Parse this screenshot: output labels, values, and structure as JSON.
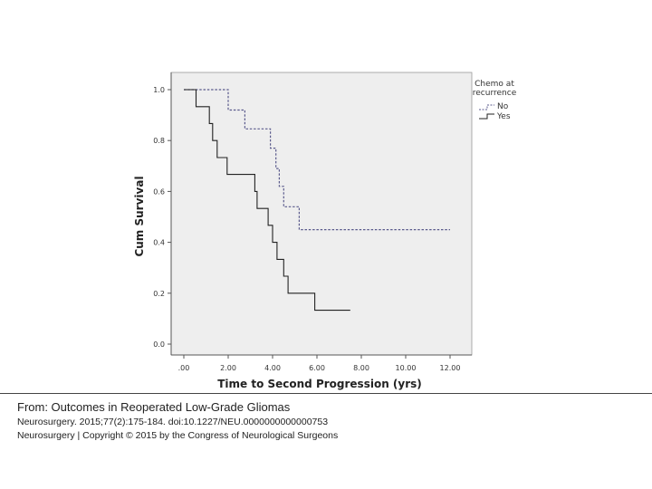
{
  "chart_data": {
    "type": "line",
    "subtype": "kaplan-meier step",
    "title": "",
    "xlabel": "Time to Second Progression (yrs)",
    "ylabel": "Cum Survival",
    "xlim": [
      0,
      12
    ],
    "ylim": [
      0,
      1.0
    ],
    "xticks": [
      ".00",
      "2.00",
      "4.00",
      "6.00",
      "8.00",
      "10.00",
      "12.00"
    ],
    "yticks": [
      "0.0",
      "0.2",
      "0.4",
      "0.6",
      "0.8",
      "1.0"
    ],
    "grid": false,
    "plot_background": "#eeeeee",
    "legend": {
      "title_lines": [
        "Chemo at",
        "recurrence"
      ],
      "placement": "right-top, outside plot"
    },
    "series": [
      {
        "name": "No",
        "style": "dashed",
        "color": "#5a5a8c",
        "x": [
          0,
          2.0,
          2.0,
          2.75,
          2.75,
          3.9,
          3.9,
          4.15,
          4.15,
          4.3,
          4.3,
          4.5,
          4.5,
          5.2,
          5.2,
          12.0
        ],
        "y": [
          1.0,
          1.0,
          0.92,
          0.92,
          0.846,
          0.846,
          0.77,
          0.77,
          0.69,
          0.69,
          0.62,
          0.62,
          0.54,
          0.54,
          0.45,
          0.45
        ]
      },
      {
        "name": "Yes",
        "style": "solid",
        "color": "#222222",
        "x": [
          0,
          0.55,
          0.55,
          1.15,
          1.15,
          1.3,
          1.3,
          1.5,
          1.5,
          1.95,
          1.95,
          3.2,
          3.2,
          3.3,
          3.3,
          3.8,
          3.8,
          4.0,
          4.0,
          4.2,
          4.2,
          4.5,
          4.5,
          4.7,
          4.7,
          5.9,
          5.9,
          7.5
        ],
        "y": [
          1.0,
          1.0,
          0.933,
          0.933,
          0.867,
          0.867,
          0.8,
          0.8,
          0.733,
          0.733,
          0.667,
          0.667,
          0.6,
          0.6,
          0.533,
          0.533,
          0.467,
          0.467,
          0.4,
          0.4,
          0.333,
          0.333,
          0.267,
          0.267,
          0.2,
          0.2,
          0.133,
          0.133
        ]
      }
    ]
  },
  "caption": {
    "from_line": "From: Outcomes in Reoperated Low-Grade Gliomas",
    "citation": "Neurosurgery. 2015;77(2):175-184. doi:10.1227/NEU.0000000000000753",
    "copyright": "Neurosurgery | Copyright © 2015 by the Congress of Neurological Surgeons"
  }
}
